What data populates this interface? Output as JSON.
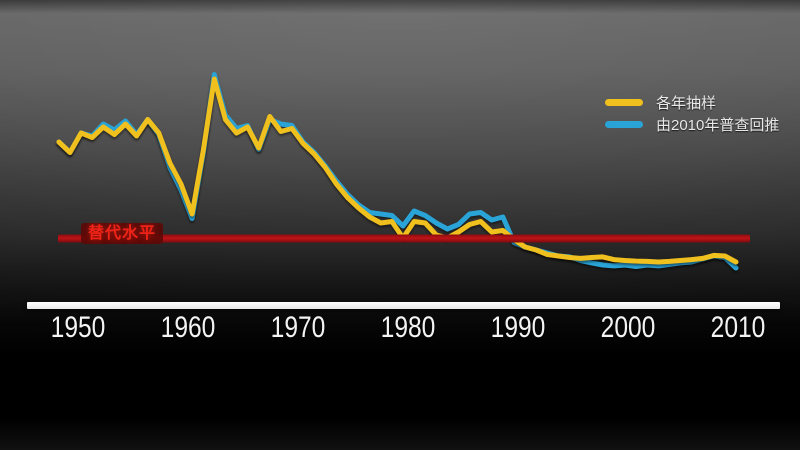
{
  "chart_data": {
    "type": "line",
    "title": "",
    "xlabel": "",
    "ylabel": "",
    "x": [
      1949,
      1950,
      1951,
      1952,
      1953,
      1954,
      1955,
      1956,
      1957,
      1958,
      1959,
      1960,
      1961,
      1962,
      1963,
      1964,
      1965,
      1966,
      1967,
      1968,
      1969,
      1970,
      1971,
      1972,
      1973,
      1974,
      1975,
      1976,
      1977,
      1978,
      1979,
      1980,
      1981,
      1982,
      1983,
      1984,
      1985,
      1986,
      1987,
      1988,
      1989,
      1990,
      1991,
      1992,
      1993,
      1994,
      1995,
      1996,
      1997,
      1998,
      1999,
      2000,
      2001,
      2002,
      2003,
      2004,
      2005,
      2006,
      2007,
      2008,
      2009,
      2010
    ],
    "series": [
      {
        "id": "sampling",
        "name": "各年抽样",
        "color": "#f0c01e",
        "values": [
          5.3,
          4.95,
          5.6,
          5.45,
          5.8,
          5.55,
          5.9,
          5.5,
          6.05,
          5.6,
          4.6,
          3.9,
          2.9,
          5.0,
          7.4,
          6.05,
          5.6,
          5.8,
          5.1,
          6.15,
          5.65,
          5.75,
          5.25,
          4.9,
          4.45,
          3.9,
          3.45,
          3.1,
          2.8,
          2.6,
          2.65,
          2.1,
          2.65,
          2.6,
          2.2,
          2.1,
          2.3,
          2.55,
          2.65,
          2.3,
          2.35,
          2.05,
          1.8,
          1.7,
          1.55,
          1.5,
          1.45,
          1.42,
          1.45,
          1.47,
          1.38,
          1.35,
          1.33,
          1.32,
          1.3,
          1.32,
          1.35,
          1.38,
          1.42,
          1.52,
          1.5,
          1.3
        ]
      },
      {
        "id": "census-backcast",
        "name": "由2010年普查回推",
        "color": "#2aa3d6",
        "values": [
          5.3,
          4.95,
          5.6,
          5.5,
          5.9,
          5.7,
          6.0,
          5.55,
          6.05,
          5.55,
          4.45,
          3.7,
          2.75,
          4.9,
          7.55,
          6.2,
          5.75,
          5.85,
          5.05,
          6.05,
          5.9,
          5.85,
          5.3,
          4.95,
          4.5,
          4.0,
          3.55,
          3.2,
          2.95,
          2.9,
          2.85,
          2.5,
          3.0,
          2.85,
          2.6,
          2.4,
          2.55,
          2.9,
          2.95,
          2.7,
          2.8,
          1.95,
          1.8,
          1.7,
          1.6,
          1.5,
          1.47,
          1.35,
          1.27,
          1.2,
          1.17,
          1.2,
          1.15,
          1.2,
          1.17,
          1.22,
          1.27,
          1.3,
          1.4,
          1.5,
          1.45,
          1.1
        ]
      }
    ],
    "annotations": [
      {
        "type": "hline",
        "label": "替代水平",
        "value": 2.1,
        "color": "#b51318",
        "label_color": "#ef2318"
      }
    ],
    "x_ticks": [
      1950,
      1960,
      1970,
      1980,
      1990,
      2000,
      2010
    ],
    "xlim": [
      1949,
      2010
    ],
    "ylim": [
      0,
      8
    ],
    "grid": false,
    "y_axis_labels_visible": false,
    "legend_position": "top-right",
    "background": "dark-gray-gradient"
  }
}
